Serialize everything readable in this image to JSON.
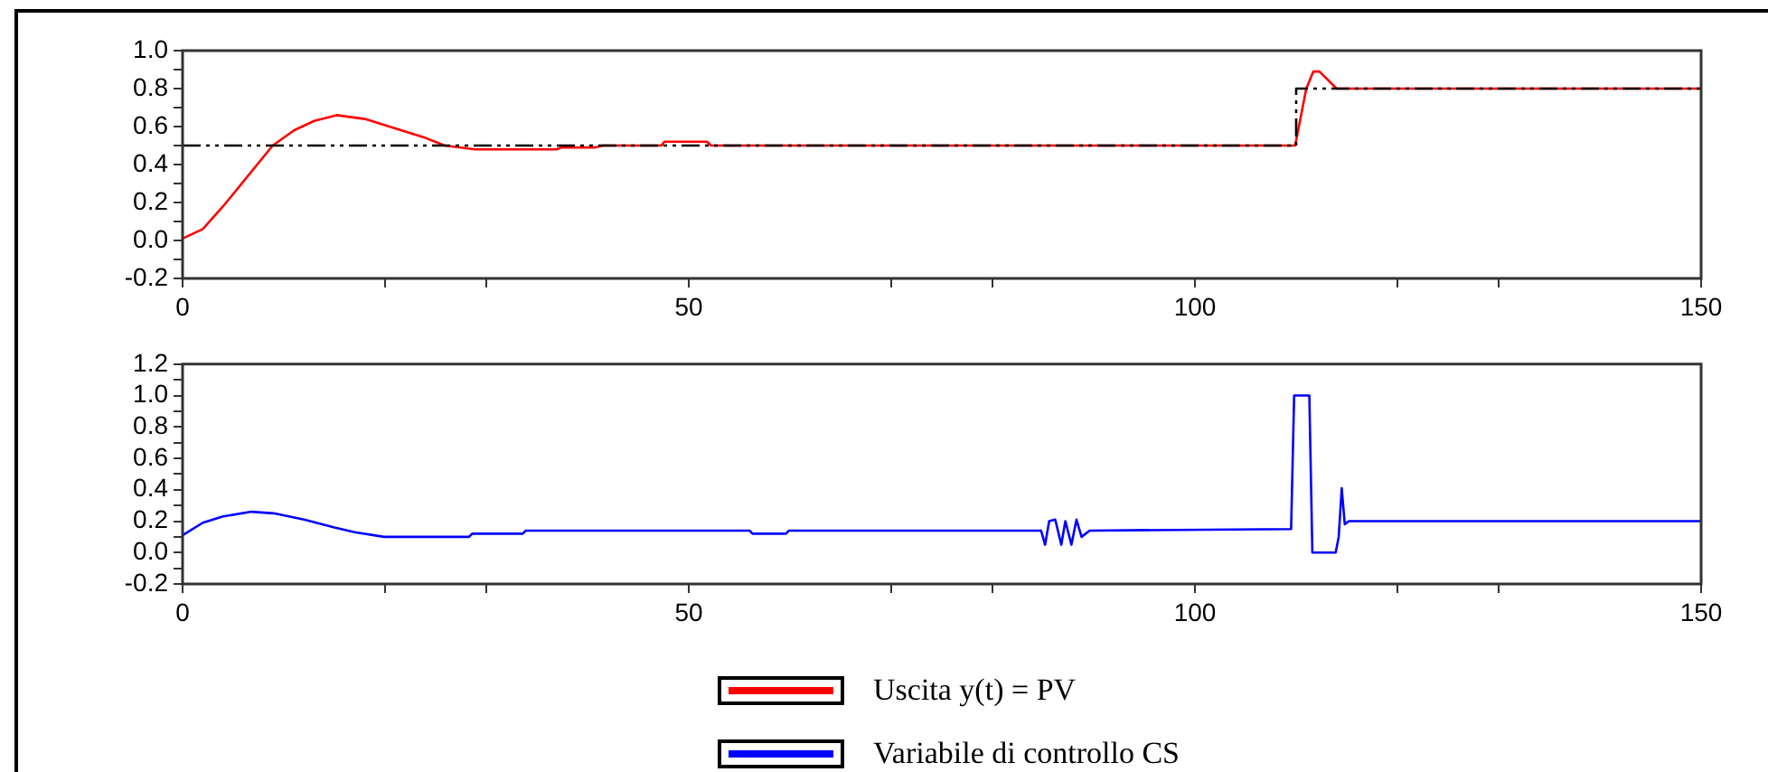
{
  "chart_data": [
    {
      "type": "line",
      "legend": "bottom",
      "grid": false,
      "xlim": [
        0,
        150
      ],
      "xticks": [
        0,
        {
          "value": 20,
          "label": null
        },
        {
          "value": 30,
          "label": null
        },
        50,
        {
          "value": 70,
          "label": null
        },
        {
          "value": 80,
          "label": null
        },
        100,
        {
          "value": 120,
          "label": null
        },
        {
          "value": 130,
          "label": null
        },
        150
      ],
      "ylim": [
        -0.2,
        1.0
      ],
      "yticks": [
        {
          "value": -0.2,
          "label": "-0.2"
        },
        {
          "value": -0.1,
          "label": null
        },
        {
          "value": 0,
          "label": "0.0"
        },
        {
          "value": 0.1,
          "label": null
        },
        {
          "value": 0.2,
          "label": "0.2"
        },
        {
          "value": 0.3,
          "label": null
        },
        {
          "value": 0.4,
          "label": "0.4"
        },
        {
          "value": 0.5,
          "label": null
        },
        {
          "value": 0.6,
          "label": "0.6"
        },
        {
          "value": 0.7,
          "label": null
        },
        {
          "value": 0.8,
          "label": "0.8"
        },
        {
          "value": 0.9,
          "label": null
        },
        {
          "value": 1.0,
          "label": "1.0"
        }
      ],
      "series": [
        {
          "name": "Uscita y(t) = PV",
          "color": "#ff0000",
          "x": [
            0,
            2,
            4,
            6,
            8.9,
            11,
            13,
            15.2,
            18,
            21,
            24,
            25.9,
            28.9,
            36.9,
            37.5,
            40.8,
            41.5,
            47.3,
            47.6,
            51.8,
            52.2,
            109.9,
            111,
            111.7,
            112.3,
            114,
            150
          ],
          "values": [
            0.01,
            0.06,
            0.18,
            0.31,
            0.5,
            0.58,
            0.63,
            0.66,
            0.64,
            0.59,
            0.54,
            0.5,
            0.48,
            0.48,
            0.49,
            0.49,
            0.5,
            0.5,
            0.52,
            0.52,
            0.5,
            0.5,
            0.8,
            0.89,
            0.89,
            0.8,
            0.8
          ]
        },
        {
          "color": "#000000",
          "line_style": "dashed",
          "x": [
            0,
            110,
            110,
            150
          ],
          "values": [
            0.5,
            0.5,
            0.8,
            0.8
          ]
        }
      ]
    },
    {
      "type": "line",
      "legend": "bottom",
      "grid": false,
      "xlim": [
        0,
        150
      ],
      "xticks": [
        0,
        {
          "value": 20,
          "label": null
        },
        {
          "value": 30,
          "label": null
        },
        50,
        {
          "value": 70,
          "label": null
        },
        {
          "value": 80,
          "label": null
        },
        100,
        {
          "value": 120,
          "label": null
        },
        {
          "value": 130,
          "label": null
        },
        150
      ],
      "ylim": [
        -0.2,
        1.2
      ],
      "yticks": [
        {
          "value": -0.2,
          "label": "-0.2"
        },
        {
          "value": -0.1,
          "label": null
        },
        {
          "value": 0,
          "label": "0.0"
        },
        {
          "value": 0.1,
          "label": null
        },
        {
          "value": 0.2,
          "label": "0.2"
        },
        {
          "value": 0.3,
          "label": null
        },
        {
          "value": 0.4,
          "label": "0.4"
        },
        {
          "value": 0.5,
          "label": null
        },
        {
          "value": 0.6,
          "label": "0.6"
        },
        {
          "value": 0.7,
          "label": null
        },
        {
          "value": 0.8,
          "label": "0.8"
        },
        {
          "value": 0.9,
          "label": null
        },
        {
          "value": 1.0,
          "label": "1.0"
        },
        {
          "value": 1.1,
          "label": null
        },
        {
          "value": 1.2,
          "label": "1.2"
        }
      ],
      "series": [
        {
          "name": "Variabile di controllo CS",
          "color": "#0000ff",
          "x": [
            0,
            2,
            4,
            6.8,
            9,
            12,
            15,
            17,
            19.9,
            28.3,
            28.6,
            33.6,
            33.9,
            56,
            56.3,
            59.6,
            59.9,
            84.8,
            85.2,
            85.6,
            86.2,
            86.8,
            87.2,
            87.8,
            88.3,
            88.8,
            89.6,
            109.5,
            109.8,
            111.3,
            111.6,
            113.9,
            114.2,
            114.5,
            114.8,
            115.2,
            150
          ],
          "values": [
            0.11,
            0.19,
            0.23,
            0.26,
            0.25,
            0.21,
            0.16,
            0.13,
            0.1,
            0.1,
            0.12,
            0.12,
            0.14,
            0.14,
            0.12,
            0.12,
            0.14,
            0.14,
            0.05,
            0.2,
            0.21,
            0.05,
            0.2,
            0.05,
            0.21,
            0.1,
            0.14,
            0.15,
            1.0,
            1.0,
            0.0,
            0.0,
            0.1,
            0.41,
            0.18,
            0.2,
            0.2
          ]
        }
      ]
    }
  ]
}
